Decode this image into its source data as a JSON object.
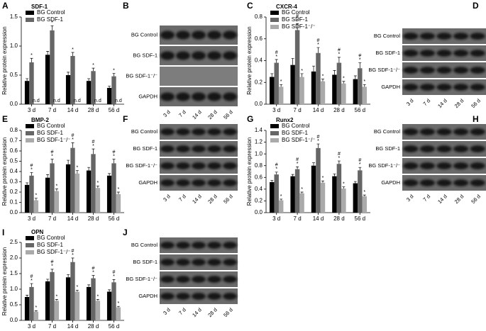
{
  "chart_data": [
    {
      "type": "bar",
      "panel": "A",
      "title": "SDF-1",
      "y_label": "Relative protein expression",
      "categories": [
        "3 d",
        "7 d",
        "14 d",
        "28 d",
        "56 d"
      ],
      "ylim": [
        0,
        1.5
      ],
      "yticks": [
        {
          "value": 0,
          "label": "0.0"
        },
        0.5,
        {
          "value": 1,
          "label": "1.0"
        },
        1.5
      ],
      "annotations": [
        "n.d",
        "n.d",
        "n.d",
        "n.d",
        "n.d"
      ],
      "series": [
        {
          "name": "BG Control",
          "color": "#000000",
          "values": [
            0.4,
            0.85,
            0.5,
            0.4,
            0.28
          ],
          "errors": [
            0.04,
            0.06,
            0.05,
            0.04,
            0.03
          ]
        },
        {
          "name": "BG SDF-1",
          "color": "#666666",
          "values": [
            0.72,
            1.27,
            0.83,
            0.57,
            0.48
          ],
          "errors": [
            0.07,
            0.08,
            0.06,
            0.05,
            0.05
          ],
          "sig": [
            [
              "*"
            ],
            [
              "*"
            ],
            [
              "*"
            ],
            [
              "*"
            ],
            [
              "*"
            ]
          ]
        }
      ]
    },
    {
      "type": "bar",
      "panel": "C",
      "title": "CXCR-4",
      "y_label": "Relative protein expression",
      "categories": [
        "3 d",
        "7 d",
        "14 d",
        "28 d",
        "56 d"
      ],
      "ylim": [
        0,
        0.8
      ],
      "yticks": [
        {
          "value": 0,
          "label": "0.0"
        },
        0.2,
        0.4,
        0.6,
        0.8
      ],
      "series": [
        {
          "name": "BG Control",
          "color": "#000000",
          "values": [
            0.25,
            0.36,
            0.3,
            0.27,
            0.23
          ],
          "errors": [
            0.03,
            0.06,
            0.05,
            0.04,
            0.03
          ]
        },
        {
          "name": "BG SDF-1",
          "color": "#666666",
          "values": [
            0.38,
            0.68,
            0.47,
            0.38,
            0.33
          ],
          "errors": [
            0.03,
            0.06,
            0.05,
            0.05,
            0.05
          ],
          "sig": [
            [
              "#",
              "*"
            ],
            [
              "#",
              "*"
            ],
            [
              "#",
              "*"
            ],
            [
              "#",
              "*"
            ],
            [
              "#",
              "*"
            ]
          ]
        },
        {
          "name": "BG SDF-1⁻/⁻",
          "color": "#aaaaaa",
          "values": [
            0.16,
            0.25,
            0.21,
            0.19,
            0.16
          ],
          "errors": [
            0.02,
            0.03,
            0.02,
            0.02,
            0.02
          ],
          "sig": [
            [
              "*"
            ],
            [
              "*"
            ],
            [
              "*"
            ],
            [
              "*"
            ],
            [
              "*"
            ]
          ]
        }
      ]
    },
    {
      "type": "bar",
      "panel": "E",
      "title": "BMP-2",
      "y_label": "Relative protein expression",
      "categories": [
        "3 d",
        "7 d",
        "14 d",
        "28 d",
        "56 d"
      ],
      "ylim": [
        0,
        0.8
      ],
      "yticks": [
        {
          "value": 0,
          "label": "0.0"
        },
        0.1,
        0.2,
        0.3,
        0.4,
        0.5,
        0.6,
        0.7,
        0.8
      ],
      "series": [
        {
          "name": "BG Control",
          "color": "#000000",
          "values": [
            0.27,
            0.34,
            0.47,
            0.41,
            0.36
          ],
          "errors": [
            0.02,
            0.03,
            0.04,
            0.03,
            0.02
          ]
        },
        {
          "name": "BG SDF-1",
          "color": "#666666",
          "values": [
            0.36,
            0.48,
            0.63,
            0.57,
            0.48
          ],
          "errors": [
            0.03,
            0.04,
            0.05,
            0.05,
            0.04
          ],
          "sig": [
            [
              "#",
              "*"
            ],
            [
              "#",
              "*"
            ],
            [
              "#",
              "*"
            ],
            [
              "#",
              "*"
            ],
            [
              "#",
              "*"
            ]
          ]
        },
        {
          "name": "BG SDF-1⁻/⁻",
          "color": "#aaaaaa",
          "values": [
            0.12,
            0.21,
            0.38,
            0.24,
            0.18
          ],
          "errors": [
            0.02,
            0.02,
            0.03,
            0.02,
            0.02
          ],
          "sig": [
            [
              "*"
            ],
            [
              "*"
            ],
            [
              "*"
            ],
            [
              "*"
            ],
            [
              "*"
            ]
          ]
        }
      ]
    },
    {
      "type": "bar",
      "panel": "G",
      "title": "Runx2",
      "y_label": "Relative protein expression",
      "categories": [
        "3 d",
        "7 d",
        "14 d",
        "28 d",
        "56 d"
      ],
      "ylim": [
        0,
        1.4
      ],
      "yticks": [
        {
          "value": 0,
          "label": "0.0"
        },
        0.2,
        0.4,
        0.6,
        0.8,
        {
          "value": 1,
          "label": "1.0"
        },
        1.2,
        1.4
      ],
      "series": [
        {
          "name": "BG Control",
          "color": "#000000",
          "values": [
            0.52,
            0.62,
            0.8,
            0.62,
            0.5
          ],
          "errors": [
            0.03,
            0.03,
            0.05,
            0.04,
            0.03
          ]
        },
        {
          "name": "BG SDF-1",
          "color": "#666666",
          "values": [
            0.65,
            0.74,
            1.1,
            0.83,
            0.72
          ],
          "errors": [
            0.04,
            0.04,
            0.07,
            0.05,
            0.05
          ],
          "sig": [
            [
              "#",
              "*"
            ],
            [
              "#",
              "*"
            ],
            [
              "#",
              "*"
            ],
            [
              "#",
              "*"
            ],
            [
              "#",
              "*"
            ]
          ]
        },
        {
          "name": "BG SDF-1⁻/⁻",
          "color": "#aaaaaa",
          "values": [
            0.21,
            0.33,
            0.51,
            0.41,
            0.28
          ],
          "errors": [
            0.02,
            0.02,
            0.03,
            0.03,
            0.02
          ],
          "sig": [
            [
              "*"
            ],
            [
              "*"
            ],
            [
              "*"
            ],
            [
              "*"
            ],
            [
              "*"
            ]
          ]
        }
      ]
    },
    {
      "type": "bar",
      "panel": "I",
      "title": "OPN",
      "y_label": "Relative protein expression",
      "categories": [
        "3 d",
        "7 d",
        "14 d",
        "28 d",
        "56 d"
      ],
      "ylim": [
        0,
        2.5
      ],
      "yticks": [
        {
          "value": 0,
          "label": "0.0"
        },
        0.5,
        {
          "value": 1,
          "label": "1.0"
        },
        1.5,
        {
          "value": 2,
          "label": "2.0"
        },
        2.5
      ],
      "series": [
        {
          "name": "BG Control",
          "color": "#000000",
          "values": [
            0.75,
            1.25,
            1.38,
            1.07,
            0.92
          ],
          "errors": [
            0.06,
            0.07,
            0.09,
            0.07,
            0.06
          ]
        },
        {
          "name": "BG SDF-1",
          "color": "#666666",
          "values": [
            1.07,
            1.55,
            1.87,
            1.35,
            1.22
          ],
          "errors": [
            0.11,
            0.09,
            0.13,
            0.09,
            0.09
          ],
          "sig": [
            [
              "#",
              "*"
            ],
            [
              "#",
              "*"
            ],
            [
              "#",
              "*"
            ],
            [
              "#",
              "*"
            ],
            [
              "#",
              "*"
            ]
          ]
        },
        {
          "name": "BG SDF-1⁻/⁻",
          "color": "#aaaaaa",
          "values": [
            0.28,
            0.63,
            0.92,
            0.63,
            0.42
          ],
          "errors": [
            0.03,
            0.04,
            0.05,
            0.04,
            0.03
          ],
          "sig": [
            [
              "*"
            ],
            [
              "*"
            ],
            [
              "*"
            ],
            [
              "*"
            ],
            [
              "*"
            ]
          ]
        }
      ]
    }
  ],
  "blots": [
    {
      "panel": "B",
      "rows": [
        "BG Control",
        "BG SDF-1",
        "BG SDF-1⁻/⁻",
        "GAPDH"
      ],
      "bands": [
        true,
        true,
        false,
        true
      ],
      "lanes": [
        "3 d",
        "7 d",
        "14 d",
        "28 d",
        "56 d"
      ]
    },
    {
      "panel": "D",
      "rows": [
        "BG Control",
        "BG SDF-1",
        "BG SDF-1⁻/⁻",
        "GAPDH"
      ],
      "bands": [
        true,
        true,
        true,
        true
      ],
      "lanes": [
        "3 d",
        "7 d",
        "14 d",
        "28 d",
        "56 d"
      ]
    },
    {
      "panel": "F",
      "rows": [
        "BG Control",
        "BG SDF-1",
        "BG SDF-1⁻/⁻",
        "GAPDH"
      ],
      "bands": [
        true,
        true,
        true,
        true
      ],
      "lanes": [
        "3 d",
        "7 d",
        "14 d",
        "28 d",
        "56 d"
      ]
    },
    {
      "panel": "H",
      "rows": [
        "BG Control",
        "BG SDF-1",
        "BG SDF-1⁻/⁻",
        "GAPDH"
      ],
      "bands": [
        true,
        true,
        true,
        true
      ],
      "lanes": [
        "3 d",
        "7 d",
        "14 d",
        "28 d",
        "56 d"
      ]
    },
    {
      "panel": "J",
      "rows": [
        "BG Control",
        "BG SDF-1",
        "BG SDF-1⁻/⁻",
        "GAPDH"
      ],
      "bands": [
        true,
        true,
        true,
        true
      ],
      "lanes": [
        "3 d",
        "7 d",
        "14 d",
        "28 d",
        "56 d"
      ]
    }
  ]
}
